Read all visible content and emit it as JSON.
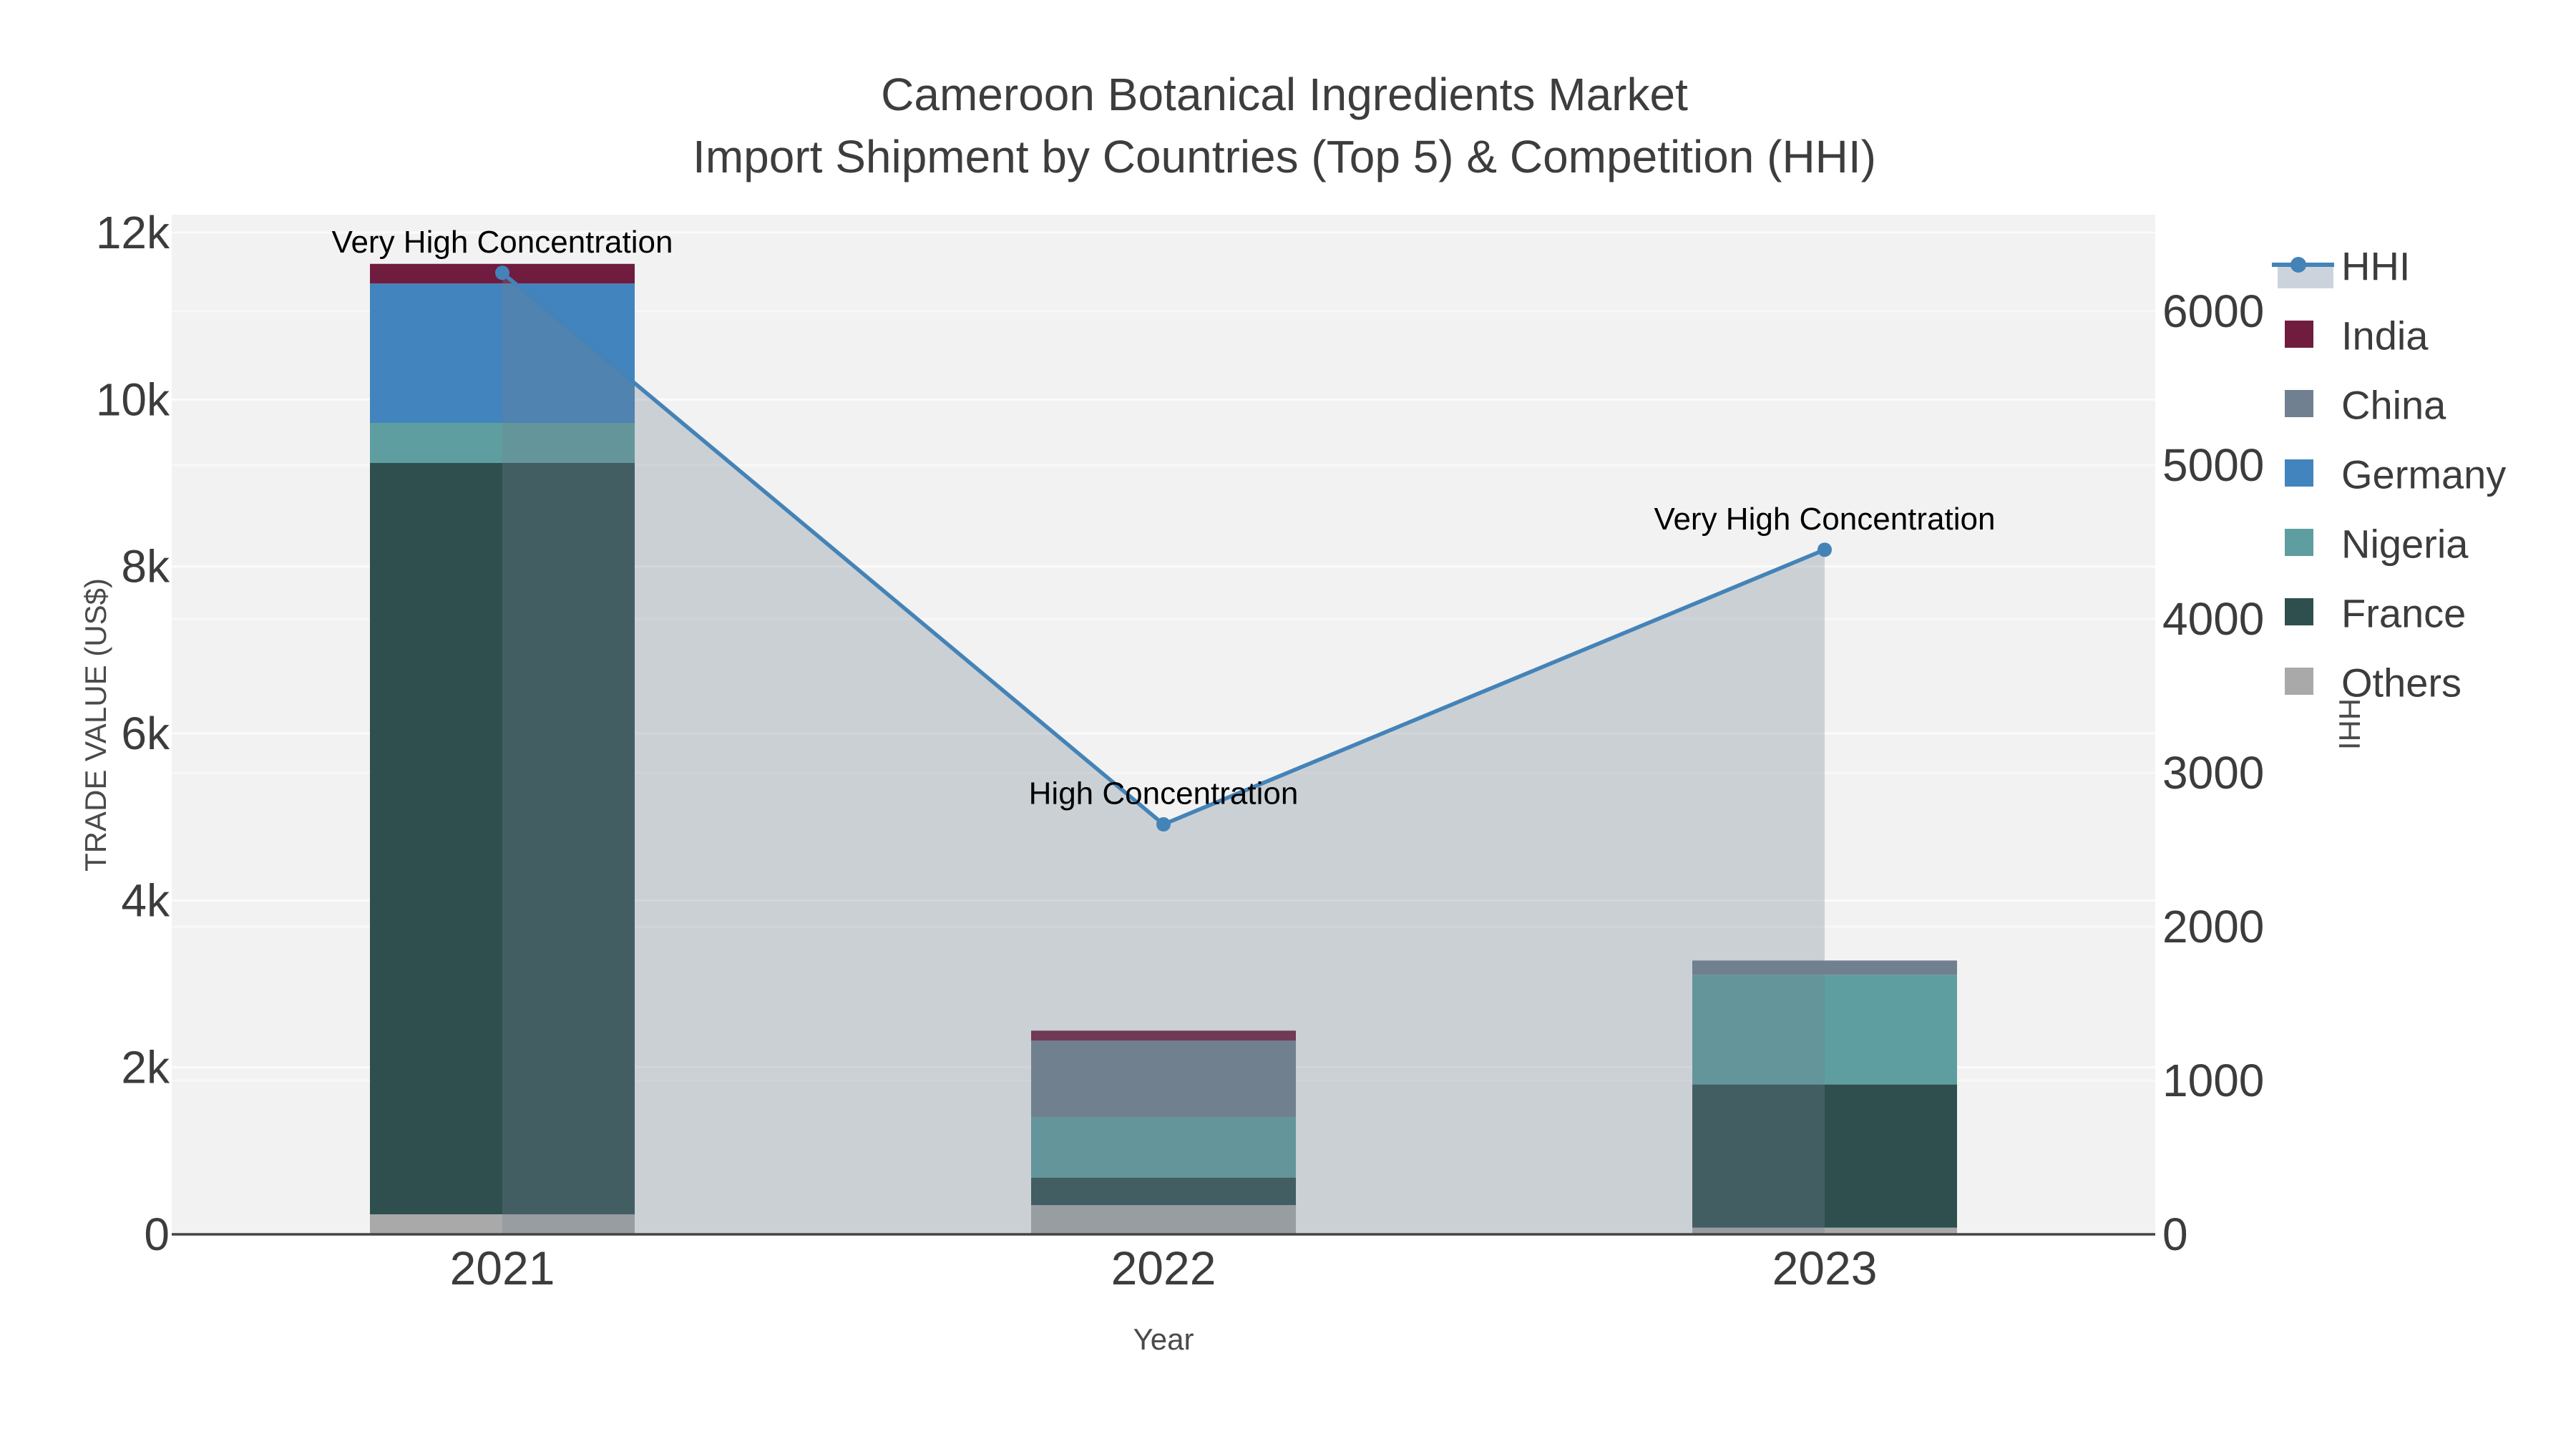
{
  "title": {
    "line1": "Cameroon Botanical Ingredients Market",
    "line2": "Import Shipment by Countries (Top 5) & Competition (HHI)"
  },
  "axes": {
    "x": {
      "title": "Year",
      "tick_labels": [
        "2021",
        "2022",
        "2023"
      ]
    },
    "y_left": {
      "title": "TRADE VALUE (US$)",
      "tick_labels": [
        "0",
        "2k",
        "4k",
        "6k",
        "8k",
        "10k",
        "12k"
      ],
      "tick_values": [
        0,
        2000,
        4000,
        6000,
        8000,
        10000,
        12000
      ],
      "range": [
        0,
        12000
      ]
    },
    "y_right": {
      "title": "HHI",
      "tick_labels": [
        "0",
        "1000",
        "2000",
        "3000",
        "4000",
        "5000",
        "6000"
      ],
      "tick_values": [
        0,
        1000,
        2000,
        3000,
        4000,
        5000,
        6000
      ],
      "range": [
        0,
        6628
      ]
    }
  },
  "chart_data": {
    "type": "bar",
    "subtype": "stacked-bar-with-line",
    "categories": [
      "2021",
      "2022",
      "2023"
    ],
    "series": [
      {
        "name": "Others",
        "type": "bar",
        "color": "#a9a9a9",
        "values": [
          240,
          350,
          80
        ]
      },
      {
        "name": "France",
        "type": "bar",
        "color": "#2f4f4f",
        "values": [
          9000,
          330,
          1715
        ]
      },
      {
        "name": "Nigeria",
        "type": "bar",
        "color": "#5f9ea0",
        "values": [
          480,
          725,
          1315
        ]
      },
      {
        "name": "Germany",
        "type": "bar",
        "color": "#4284bd",
        "values": [
          1670,
          0,
          0
        ]
      },
      {
        "name": "China",
        "type": "bar",
        "color": "#708090",
        "values": [
          0,
          915,
          170
        ]
      },
      {
        "name": "India",
        "type": "bar",
        "color": "#701c3e",
        "values": [
          235,
          120,
          0
        ]
      }
    ],
    "line_series": {
      "name": "HHI",
      "axis": "right",
      "values": [
        6250,
        2665,
        4450
      ],
      "line_color": "#4483b8",
      "marker_color": "#4483b8",
      "area_fill_color": "rgba(112,128,144,0.30)"
    },
    "annotations": [
      {
        "text": "Very High Concentration",
        "point_index": 0
      },
      {
        "text": "High Concentration",
        "point_index": 1
      },
      {
        "text": "Very High Concentration",
        "point_index": 2
      }
    ],
    "title": "Cameroon Botanical Ingredients Market — Import Shipment by Countries (Top 5) & Competition (HHI)",
    "xlabel": "Year",
    "ylabel": "TRADE VALUE (US$)",
    "ylabel_right": "HHI",
    "grid": true,
    "legend_position": "right"
  },
  "legend": {
    "entries": [
      "HHI",
      "India",
      "China",
      "Germany",
      "Nigeria",
      "France",
      "Others"
    ],
    "hhi_sample_band_color": "#ccd3dd"
  },
  "colors": {
    "plot_background": "#f2f2f2",
    "grid_left": "#fbfbfb",
    "grid_right": "#f8f8f8",
    "axis_line": "#444444",
    "tick_text": "#3c3c3c",
    "legend_text": "#3c3c3c",
    "annotation_text": "#000000"
  }
}
